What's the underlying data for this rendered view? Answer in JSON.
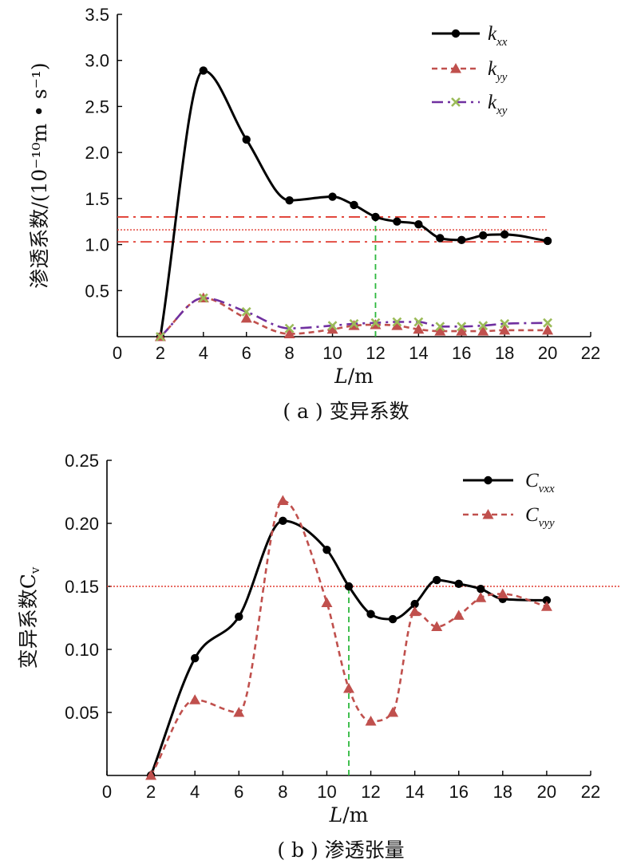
{
  "chart_data": [
    {
      "type": "line",
      "caption": "( a ) 变异系数",
      "xlabel": "L/m",
      "ylabel": "渗透系数/(10⁻¹⁰m • s⁻¹)",
      "xlim": [
        0,
        22
      ],
      "ylim": [
        0,
        3.5
      ],
      "xticks": [
        0,
        2,
        4,
        6,
        8,
        10,
        12,
        14,
        16,
        18,
        20,
        22
      ],
      "yticks": [
        0.5,
        1.0,
        1.5,
        2.0,
        2.5,
        3.0,
        3.5
      ],
      "grid": false,
      "legend_position": "top-right",
      "series": [
        {
          "name": "k_xx",
          "legend_main": "k",
          "legend_sub": "xx",
          "color": "#000000",
          "marker": "circle",
          "line_style": "solid",
          "x": [
            2,
            4,
            6,
            8,
            10,
            11,
            12,
            13,
            14,
            15,
            16,
            17,
            18,
            20
          ],
          "values": [
            0.0,
            2.89,
            2.14,
            1.48,
            1.52,
            1.43,
            1.3,
            1.25,
            1.22,
            1.07,
            1.05,
            1.1,
            1.11,
            1.04
          ]
        },
        {
          "name": "k_yy",
          "legend_main": "k",
          "legend_sub": "yy",
          "color": "#c0504d",
          "marker": "triangle",
          "line_style": "dashed",
          "x": [
            2,
            4,
            6,
            8,
            10,
            11,
            12,
            13,
            14,
            15,
            16,
            17,
            18,
            20
          ],
          "values": [
            0.0,
            0.42,
            0.2,
            0.03,
            0.08,
            0.12,
            0.13,
            0.12,
            0.08,
            0.06,
            0.06,
            0.06,
            0.07,
            0.07
          ]
        },
        {
          "name": "k_xy",
          "legend_main": "k",
          "legend_sub": "xy",
          "color": "#7030a0",
          "marker_color": "#9bbb59",
          "marker": "x",
          "line_style": "dashdot",
          "x": [
            2,
            4,
            6,
            8,
            10,
            11,
            12,
            13,
            14,
            15,
            16,
            17,
            18,
            20
          ],
          "values": [
            0.0,
            0.42,
            0.27,
            0.09,
            0.12,
            0.14,
            0.15,
            0.16,
            0.16,
            0.11,
            0.11,
            0.12,
            0.14,
            0.15
          ]
        }
      ],
      "reference_lines": {
        "horizontal": [
          {
            "y": 1.3,
            "style": "dashdot",
            "color": "#e03c31"
          },
          {
            "y": 1.16,
            "style": "dotted",
            "color": "#e03c31"
          },
          {
            "y": 1.03,
            "style": "dashdot",
            "color": "#e03c31"
          }
        ],
        "vertical": [
          {
            "x": 12,
            "style": "dashed",
            "color": "#2db83d"
          }
        ]
      }
    },
    {
      "type": "line",
      "caption": "( b ) 渗透张量",
      "xlabel": "L/m",
      "ylabel": "变异系数C",
      "xlim": [
        0,
        22
      ],
      "ylim": [
        0,
        0.25
      ],
      "xticks": [
        0,
        2,
        4,
        6,
        8,
        10,
        12,
        14,
        16,
        18,
        20,
        22
      ],
      "yticks": [
        0.05,
        0.1,
        0.15,
        0.2,
        0.25
      ],
      "grid": false,
      "legend_position": "top-right",
      "series": [
        {
          "name": "C_vxx",
          "legend_main": "C",
          "legend_sub": "vxx",
          "color": "#000000",
          "marker": "circle",
          "line_style": "solid",
          "x": [
            2,
            4,
            6,
            8,
            10,
            11,
            12,
            13,
            14,
            15,
            16,
            17,
            18,
            20
          ],
          "values": [
            0.0,
            0.093,
            0.126,
            0.202,
            0.179,
            0.15,
            0.128,
            0.124,
            0.136,
            0.155,
            0.152,
            0.148,
            0.14,
            0.139
          ]
        },
        {
          "name": "C_vyy",
          "legend_main": "C",
          "legend_sub": "vyy",
          "color": "#c0504d",
          "marker": "triangle",
          "line_style": "dashed",
          "x": [
            2,
            4,
            6,
            8,
            10,
            11,
            12,
            13,
            14,
            15,
            16,
            17,
            18,
            20
          ],
          "values": [
            0.0,
            0.06,
            0.05,
            0.218,
            0.137,
            0.069,
            0.043,
            0.05,
            0.13,
            0.118,
            0.127,
            0.141,
            0.144,
            0.134
          ]
        }
      ],
      "reference_lines": {
        "horizontal": [
          {
            "y": 0.15,
            "style": "dotted",
            "color": "#e03c31"
          }
        ],
        "vertical": [
          {
            "x": 11,
            "style": "dashed",
            "color": "#2db83d"
          }
        ]
      }
    }
  ]
}
